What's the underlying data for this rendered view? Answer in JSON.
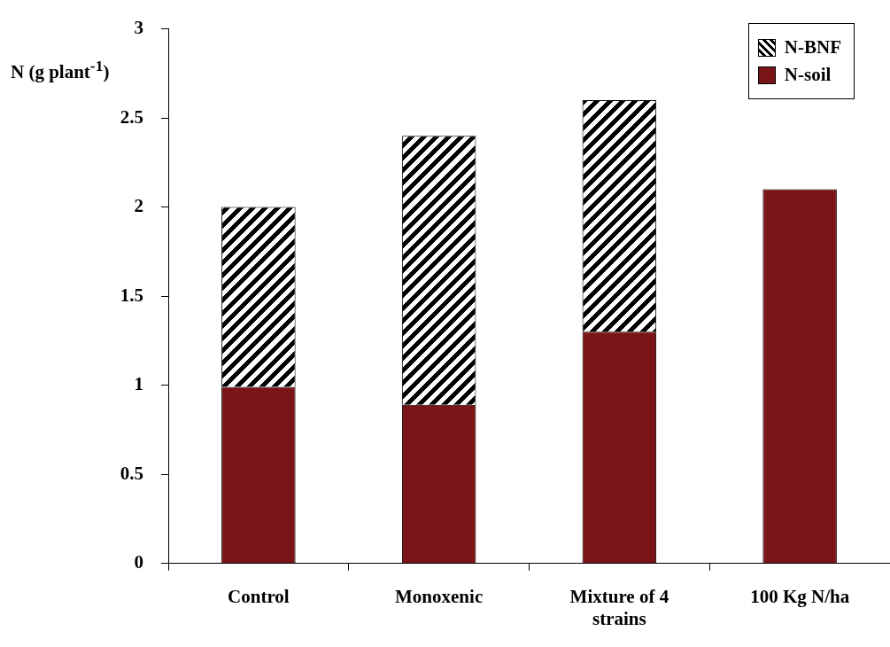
{
  "chart_data": {
    "type": "bar",
    "ylabel": "N (g plant$^{-1}$)",
    "categories": [
      "Control",
      "Monoxenic",
      "Mixture of 4 strains",
      "100 Kg N/ha"
    ],
    "stacked": true,
    "series": [
      {
        "name": "N-soil",
        "color": "#7b1416",
        "values": [
          0.99,
          0.89,
          1.3,
          2.1
        ]
      },
      {
        "name": "N-BNF",
        "color": "#000000",
        "values": [
          1.01,
          1.51,
          1.3,
          null
        ]
      }
    ],
    "ylim": [
      0,
      3
    ],
    "yticks": [
      0,
      0.5,
      1,
      1.5,
      2,
      2.5,
      3
    ],
    "grid": false,
    "legend": "top right"
  }
}
